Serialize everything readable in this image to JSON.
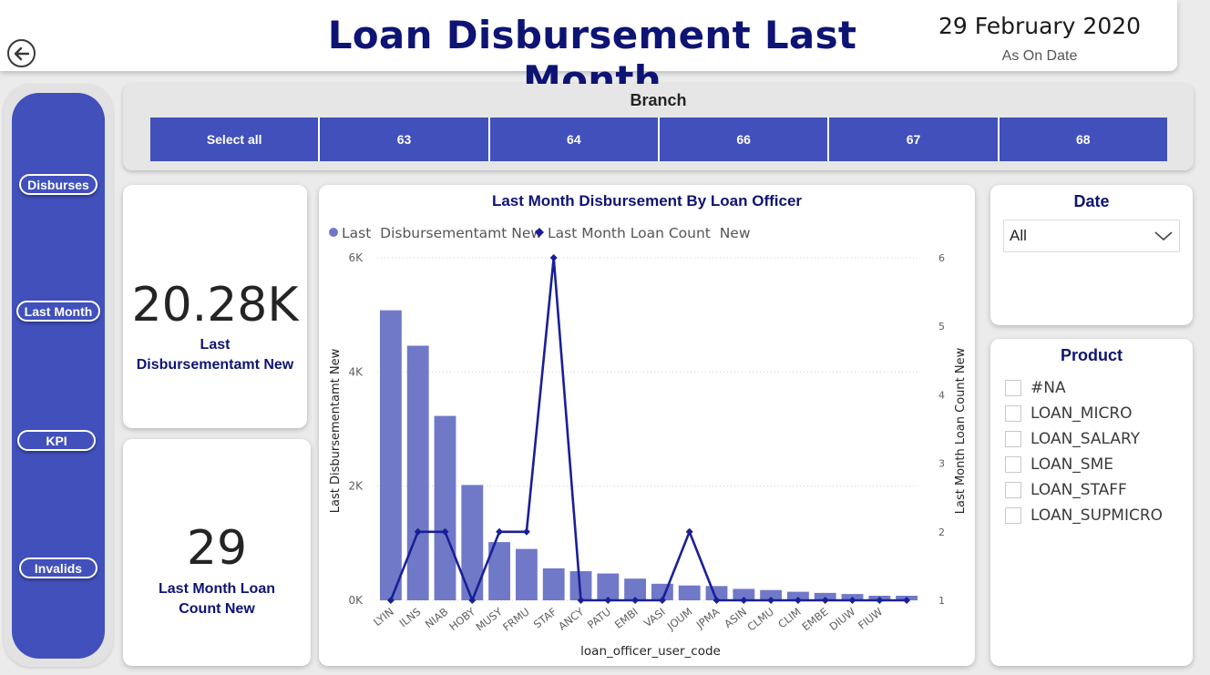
{
  "header": {
    "title": "Loan Disbursement Last Month",
    "date": "29 February 2020",
    "date_caption": "As On Date"
  },
  "sidebar": {
    "items": [
      {
        "label": "Disburses"
      },
      {
        "label": "Last Month"
      },
      {
        "label": "KPI"
      },
      {
        "label": "Invalids"
      }
    ]
  },
  "branch_slicer": {
    "title": "Branch",
    "options": [
      "Select all",
      "63",
      "64",
      "66",
      "67",
      "68"
    ]
  },
  "kpis": [
    {
      "value": "20.28K",
      "label_line1": "Last",
      "label_line2": "Disbursementamt New"
    },
    {
      "value": "29",
      "label_line1": "Last Month Loan",
      "label_line2": "Count  New"
    }
  ],
  "date_slicer": {
    "title": "Date",
    "selected": "All"
  },
  "product_slicer": {
    "title": "Product",
    "options": [
      "#NA",
      "LOAN_MICRO",
      "LOAN_SALARY",
      "LOAN_SME",
      "LOAN_STAFF",
      "LOAN_SUPMICRO"
    ]
  },
  "colors": {
    "bar": "#7079c8",
    "line": "#1a1f96",
    "accent": "#4150bb",
    "title": "#0e1473"
  },
  "chart_data": {
    "type": "bar+line",
    "title": "Last Month Disbursement By Loan Officer",
    "xlabel": "loan_officer_user_code",
    "ylabel": "Last Disbursementamt New",
    "y2label": "Last Month Loan Count New",
    "legend": [
      "Last  Disbursementamt New",
      "Last Month Loan Count  New"
    ],
    "legend_position": "top-left",
    "categories": [
      "LYIN",
      "ILNS",
      "NIAB",
      "HOBY",
      "MUSY",
      "FRMU",
      "STAF",
      "ANCY",
      "PATU",
      "EMBI",
      "VASI",
      "JOUM",
      "JPMA",
      "ASIN",
      "CLMU",
      "CLIM",
      "EMBE",
      "DIUW",
      "FIUW"
    ],
    "visible_tick_labels": [
      "LYIN",
      "ILNS",
      "NIAB",
      "HOBY",
      "MUSY",
      "FRMU",
      "STAF",
      "ANCY",
      "PATU",
      "EMBI",
      "VASI",
      "JOUM",
      "JPMA",
      "ASIN",
      "CLMU",
      "CLIM",
      "EMBE",
      "DIUW",
      "FIUW"
    ],
    "bar_values": [
      5080,
      4460,
      3230,
      2020,
      1020,
      900,
      560,
      510,
      470,
      380,
      290,
      260,
      250,
      200,
      180,
      150,
      130,
      110,
      80
    ],
    "bar_values_extra": [
      80
    ],
    "line_values": [
      1,
      2,
      2,
      1,
      2,
      2,
      6,
      1,
      1,
      1,
      1,
      2,
      1,
      1,
      1,
      1,
      1,
      1,
      1
    ],
    "line_values_extra": [
      1
    ],
    "ylim": [
      0,
      6000
    ],
    "y_ticks": [
      "0K",
      "2K",
      "4K",
      "6K"
    ],
    "y2lim": [
      1,
      6
    ],
    "y2_ticks": [
      "1",
      "2",
      "3",
      "4",
      "5",
      "6"
    ],
    "grid": "dotted horizontal"
  }
}
